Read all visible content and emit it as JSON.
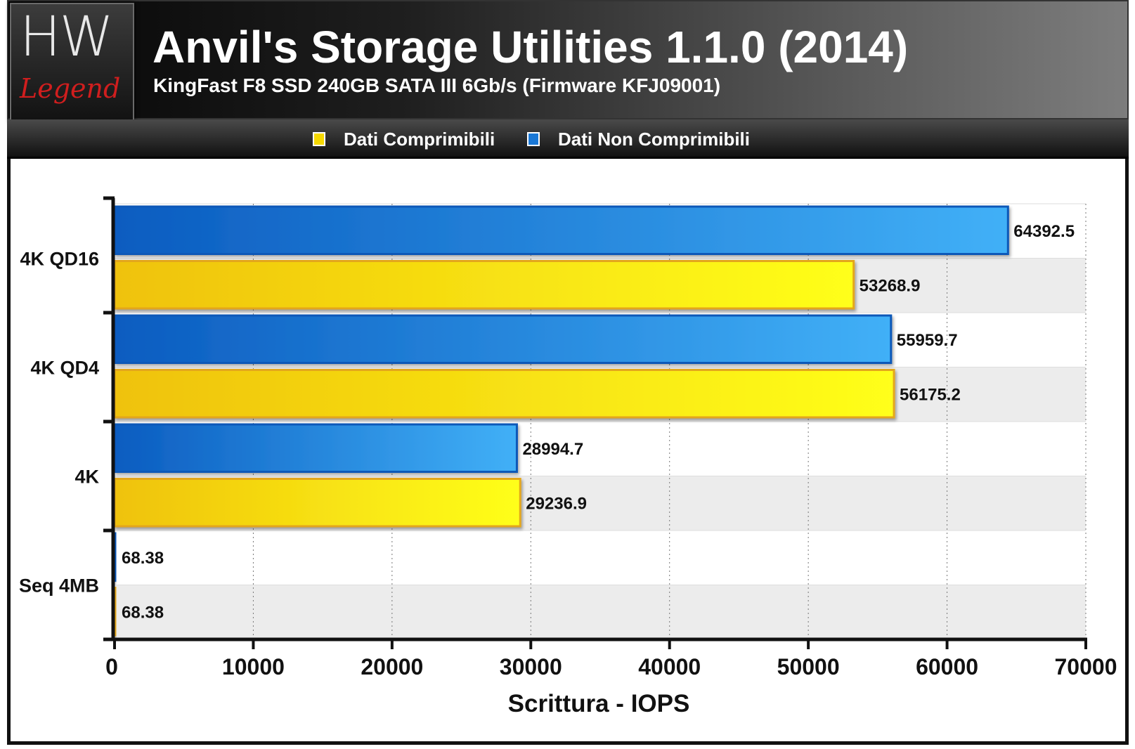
{
  "header": {
    "logo_text_top": "HW",
    "logo_text_bottom": "Legend",
    "title": "Anvil's Storage Utilities 1.1.0 (2014)",
    "subtitle": "KingFast F8 SSD 240GB SATA III 6Gb/s (Firmware KFJ09001)"
  },
  "legend": [
    {
      "label": "Dati Comprimibili",
      "color": "#f5d800"
    },
    {
      "label": "Dati Non Comprimibili",
      "color": "#1a78d6"
    }
  ],
  "chart_data": {
    "type": "bar",
    "orientation": "horizontal",
    "title": "Anvil's Storage Utilities 1.1.0 (2014)",
    "subtitle": "KingFast F8 SSD 240GB SATA III 6Gb/s (Firmware KFJ09001)",
    "categories": [
      "4K QD16",
      "4K QD4",
      "4K",
      "Seq 4MB"
    ],
    "series": [
      {
        "name": "Dati Non Comprimibili",
        "color": "#1a78d6",
        "values": [
          64392.5,
          55959.7,
          28994.7,
          68.38
        ],
        "labels": [
          "64392.5",
          "55959.7",
          "28994.7",
          "68.38"
        ]
      },
      {
        "name": "Dati Comprimibili",
        "color": "#f5d800",
        "values": [
          53268.9,
          56175.2,
          29236.9,
          68.38
        ],
        "labels": [
          "53268.9",
          "56175.2",
          "29236.9",
          "68.38"
        ]
      }
    ],
    "xlabel": "Scrittura - IOPS",
    "xlim": [
      0,
      70000
    ],
    "xticks": [
      0,
      10000,
      20000,
      30000,
      40000,
      50000,
      60000,
      70000
    ],
    "xtick_labels": [
      "0",
      "10000",
      "20000",
      "30000",
      "40000",
      "50000",
      "60000",
      "70000"
    ],
    "grid": true,
    "legend_position": "top"
  }
}
